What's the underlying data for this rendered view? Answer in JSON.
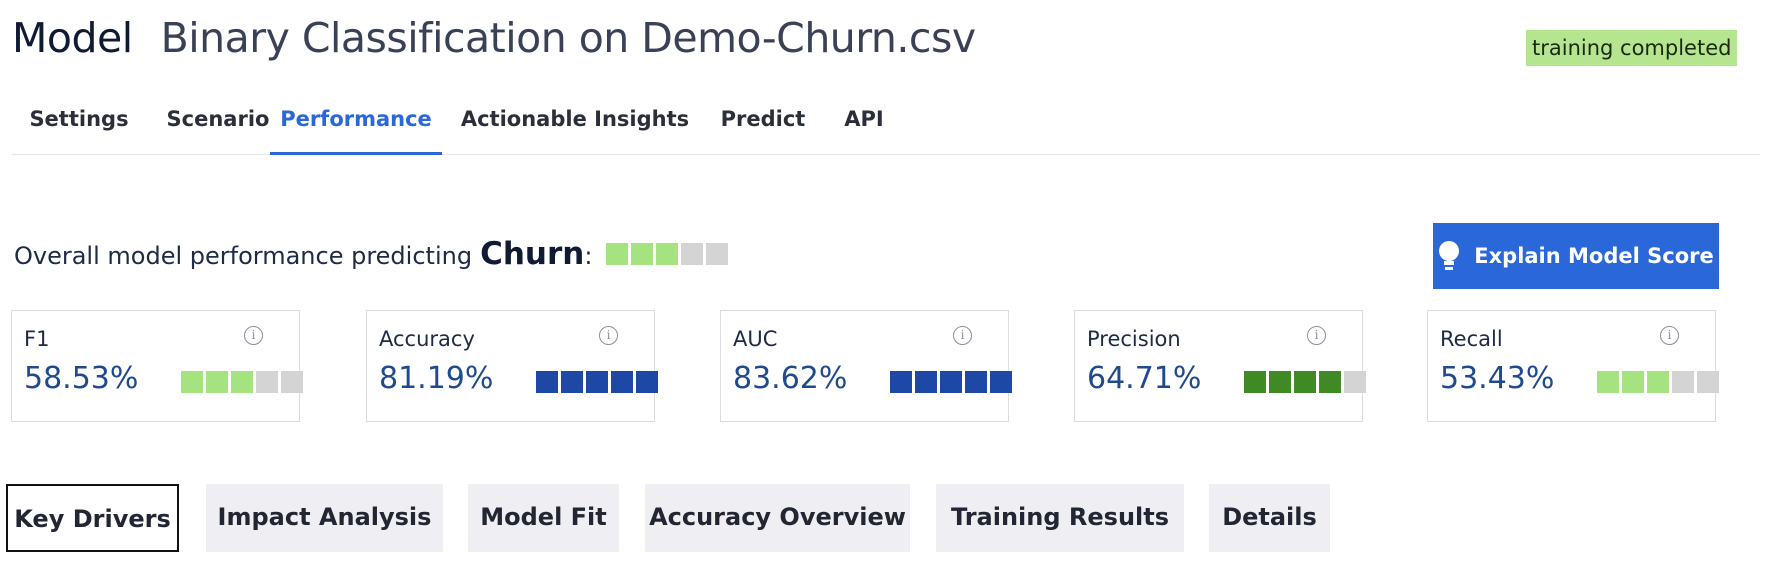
{
  "header": {
    "model_word": "Model",
    "model_name": "Binary Classification on Demo-Churn.csv",
    "status": "training completed"
  },
  "tabs": [
    {
      "label": "Settings"
    },
    {
      "label": "Scenario"
    },
    {
      "label": "Performance",
      "active": true
    },
    {
      "label": "Actionable Insights"
    },
    {
      "label": "Predict"
    },
    {
      "label": "API"
    }
  ],
  "overall": {
    "prefix": "Overall model performance predicting",
    "target": "Churn",
    "suffix": ":",
    "rating": [
      "#a4e37f",
      "#a4e37f",
      "#a4e37f",
      "#d4d4d4",
      "#d4d4d4"
    ]
  },
  "explain_button": {
    "label": "Explain Model Score",
    "icon": "lightbulb-icon"
  },
  "metrics": [
    {
      "label": "F1",
      "value": "58.53%",
      "rating": [
        "#a4e37f",
        "#a4e37f",
        "#a4e37f",
        "#d4d4d4",
        "#d4d4d4"
      ]
    },
    {
      "label": "Accuracy",
      "value": "81.19%",
      "rating": [
        "#1d48a5",
        "#1d48a5",
        "#1d48a5",
        "#1d48a5",
        "#1d48a5"
      ]
    },
    {
      "label": "AUC",
      "value": "83.62%",
      "rating": [
        "#1d48a5",
        "#1d48a5",
        "#1d48a5",
        "#1d48a5",
        "#1d48a5"
      ]
    },
    {
      "label": "Precision",
      "value": "64.71%",
      "rating": [
        "#3f8a24",
        "#3f8a24",
        "#3f8a24",
        "#3f8a24",
        "#d4d4d4"
      ]
    },
    {
      "label": "Recall",
      "value": "53.43%",
      "rating": [
        "#a4e37f",
        "#a4e37f",
        "#a4e37f",
        "#d4d4d4",
        "#d4d4d4"
      ]
    }
  ],
  "subtabs": [
    {
      "label": "Key Drivers",
      "active": true
    },
    {
      "label": "Impact Analysis"
    },
    {
      "label": "Model Fit"
    },
    {
      "label": "Accuracy Overview"
    },
    {
      "label": "Training Results"
    },
    {
      "label": "Details"
    }
  ]
}
